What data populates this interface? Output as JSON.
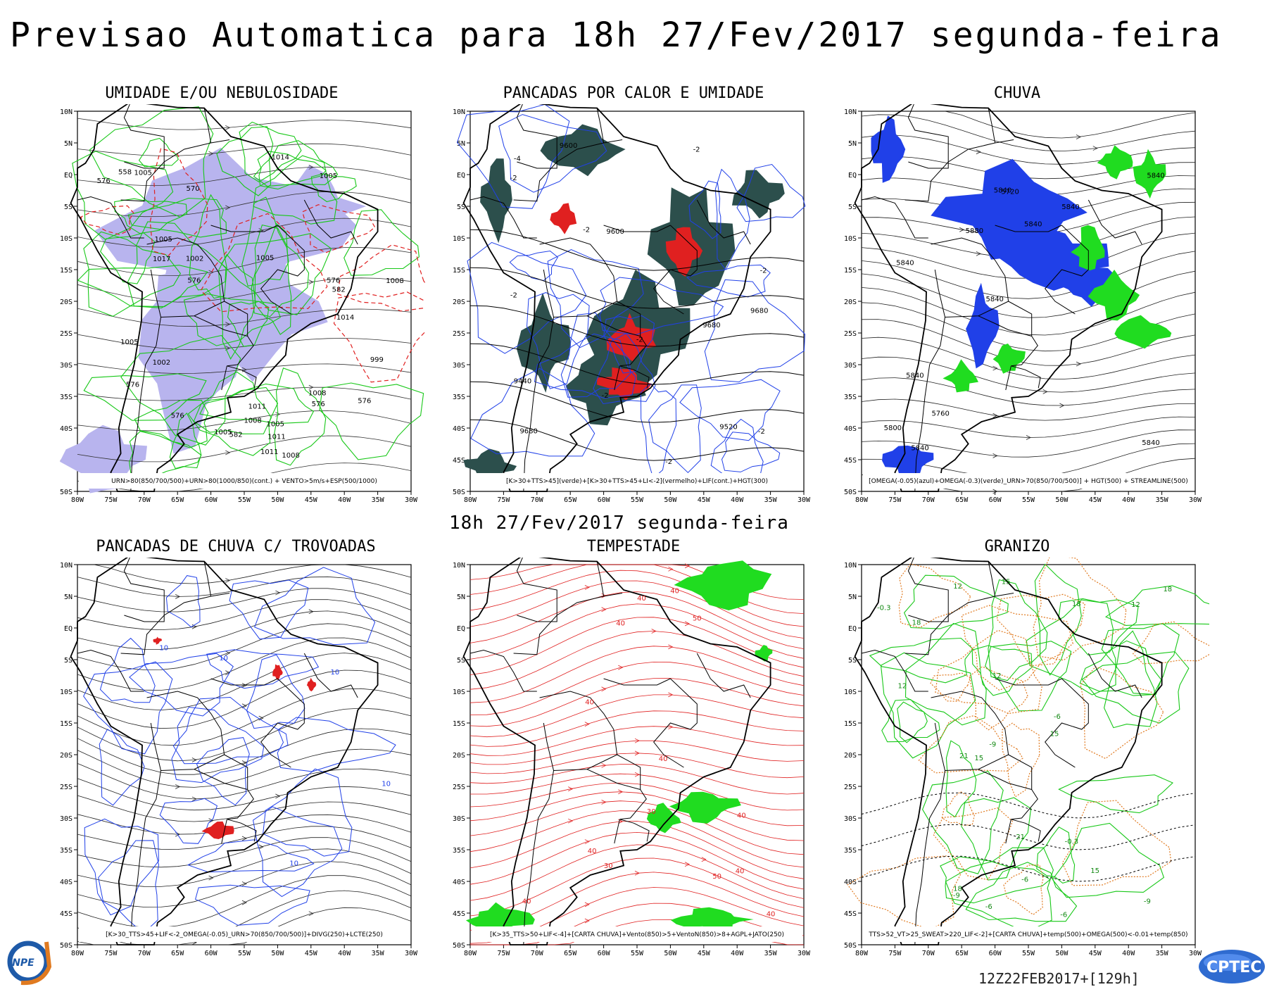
{
  "header": {
    "title": "Previsao Automatica  para 18h 27/Fev/2017 segunda-feira",
    "subtitle": "18h 27/Fev/2017 segunda-feira",
    "run": "12Z22FEB2017+[129h]"
  },
  "axes": {
    "lon_labels": [
      "80W",
      "75W",
      "70W",
      "65W",
      "60W",
      "55W",
      "50W",
      "45W",
      "40W",
      "35W",
      "30W"
    ],
    "lat_labels": [
      "10N",
      "5N",
      "EQ",
      "5S",
      "10S",
      "15S",
      "20S",
      "25S",
      "30S",
      "35S",
      "40S",
      "45S",
      "50S"
    ]
  },
  "colors": {
    "purple_fill": "#b8b4ee",
    "green_contour": "#18c818",
    "red_contour": "#e02020",
    "dark_teal": "#2c4f4c",
    "blue_contour": "#2040e8",
    "bright_green": "#20dc20",
    "orange_contour": "#e07a20"
  },
  "panels": [
    {
      "id": "umidade",
      "title": "UMIDADE E/OU NEBULOSIDADE",
      "legend": "URN>80(850/700/500)+URN>80(1000/850)(cont.) + VENTO>5m/s+ESP(500/1000)",
      "labels": [
        "1005",
        "1011",
        "1005",
        "576",
        "1008",
        "576",
        "1008",
        "1005",
        "576",
        "1005",
        "1002",
        "576",
        "582",
        "1008",
        "1005",
        "1011",
        "1008",
        "576",
        "999",
        "582",
        "1005",
        "1014",
        "1017",
        "576",
        "1005",
        "576",
        "1014",
        "1011",
        "570",
        "1002",
        "558"
      ]
    },
    {
      "id": "pancadas_calor",
      "title": "PANCADAS POR CALOR E UMIDADE",
      "legend": "[K>30+TTS>45](verde)+[K>30+TTS>45+LI<-2](vermelho)+LIF(cont.)+HGT(300)",
      "labels": [
        "9680",
        "9680",
        "9680",
        "9600",
        "9600",
        "9520",
        "9440",
        "-2",
        "-2",
        "-2",
        "-2",
        "-2",
        "-4",
        "-2",
        "-2",
        "-2",
        "-2"
      ]
    },
    {
      "id": "chuva",
      "title": "CHUVA",
      "legend": "[OMEGA(-0.05)(azul)+OMEGA(-0.3)(verde)_URN>70(850/700/500)] + HGT(500) + STREAMLINE(500)",
      "labels": [
        "5840",
        "5840",
        "5840",
        "5840",
        "5840",
        "5840",
        "5840",
        "5840",
        "5840",
        "5880",
        "5800",
        "5760",
        "5720"
      ]
    },
    {
      "id": "trovoadas",
      "title": "PANCADAS DE CHUVA C/ TROVOADAS",
      "legend": "[K>30_TTS>45+LIF<-2_OMEGA(-0.05)_URN>70(850/700/500)]+DIVG(250)+LCTE(250)",
      "labels": [
        "10",
        "10",
        "10",
        "10",
        "10"
      ]
    },
    {
      "id": "tempestade",
      "title": "TEMPESTADE",
      "legend": "[K>35_TTS>50+LIF<-4]+[CARTA CHUVA]+Vento(850)>5+VentoN(850)>8+AGPL+JATO(250)",
      "labels": [
        "40",
        "40",
        "40",
        "30",
        "40",
        "40",
        "40",
        "50",
        "50",
        "40",
        "40",
        "40",
        "30",
        "40"
      ]
    },
    {
      "id": "granizo",
      "title": "GRANIZO",
      "legend": "TTS>52_VT>25_SWEAT>220_LIF<-2]+[CARTA CHUVA]+temp(500)+OMEGA(500)<-0.01+temp(850)",
      "labels": [
        "-6",
        "-6",
        "18",
        "15",
        "12",
        "18",
        "21",
        "-9",
        "15",
        "12",
        "12",
        "-6",
        "-9",
        "21",
        "18",
        "15",
        "12",
        "-9",
        "15",
        "-0.3",
        "-0.3",
        "18",
        "-6"
      ]
    }
  ]
}
